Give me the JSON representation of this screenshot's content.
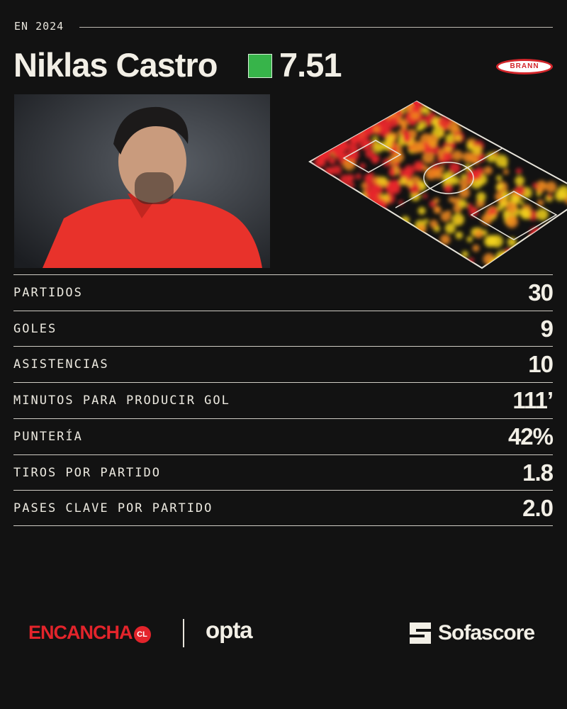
{
  "header": {
    "period": "EN 2024"
  },
  "player": {
    "name": "Niklas Castro",
    "rating": "7.51",
    "club": "BRANN"
  },
  "stats": [
    {
      "label": "PARTIDOS",
      "value": "30"
    },
    {
      "label": "GOLES",
      "value": "9"
    },
    {
      "label": "ASISTENCIAS",
      "value": "10"
    },
    {
      "label": "MINUTOS PARA PRODUCIR GOL",
      "value": "111’"
    },
    {
      "label": "PUNTERÍA",
      "value": "42%"
    },
    {
      "label": "TIROS POR PARTIDO",
      "value": "1.8"
    },
    {
      "label": "PASES CLAVE POR PARTIDO",
      "value": "2.0"
    }
  ],
  "footer": {
    "brand": "ENCANCHA",
    "brand_suffix": "CL",
    "partner": "opta",
    "provider": "Sofascore"
  }
}
